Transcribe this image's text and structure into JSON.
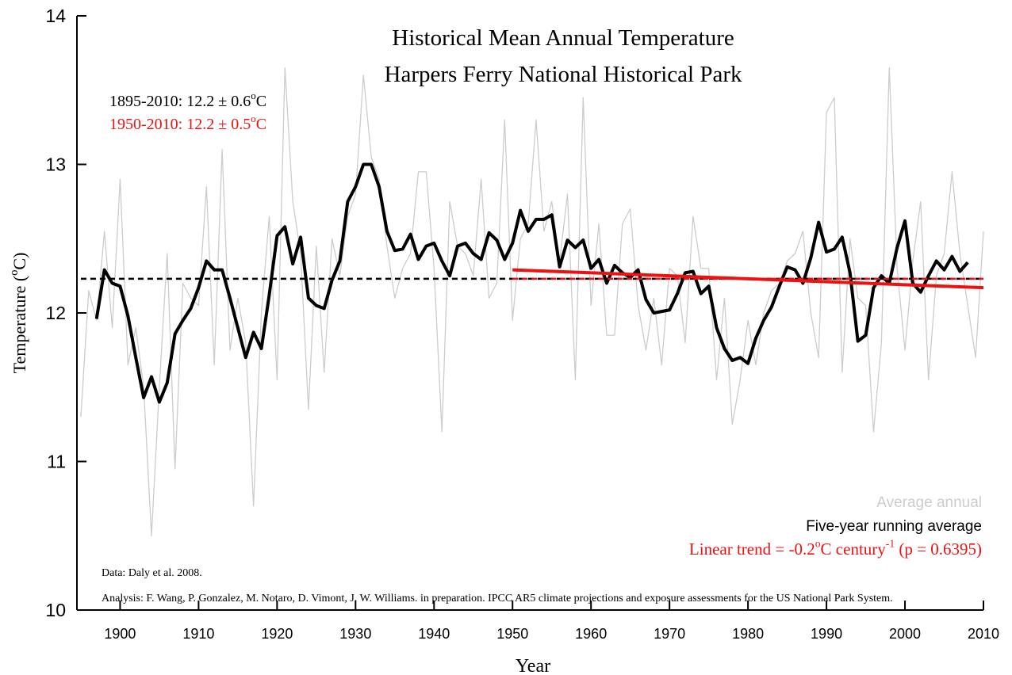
{
  "chart_data": {
    "type": "line",
    "title": [
      "Historical Mean Annual Temperature",
      "Harpers Ferry National Historical Park"
    ],
    "y_label": [
      {
        "text": "Temperature ("
      },
      {
        "text": "o",
        "sup": true
      },
      {
        "text": "C)"
      }
    ],
    "x_label": "Year",
    "xlim": [
      1894.5,
      2010
    ],
    "xticks": [
      1900,
      1910,
      1920,
      1930,
      1940,
      1950,
      1960,
      1970,
      1980,
      1990,
      2000,
      2010
    ],
    "ylim": [
      10,
      14
    ],
    "yticks": [
      10,
      11,
      12,
      13,
      14
    ],
    "x": [
      1895,
      1896,
      1897,
      1898,
      1899,
      1900,
      1901,
      1902,
      1903,
      1904,
      1905,
      1906,
      1907,
      1908,
      1909,
      1910,
      1911,
      1912,
      1913,
      1914,
      1915,
      1916,
      1917,
      1918,
      1919,
      1920,
      1921,
      1922,
      1923,
      1924,
      1925,
      1926,
      1927,
      1928,
      1929,
      1930,
      1931,
      1932,
      1933,
      1934,
      1935,
      1936,
      1937,
      1938,
      1939,
      1940,
      1941,
      1942,
      1943,
      1944,
      1945,
      1946,
      1947,
      1948,
      1949,
      1950,
      1951,
      1952,
      1953,
      1954,
      1955,
      1956,
      1957,
      1958,
      1959,
      1960,
      1961,
      1962,
      1963,
      1964,
      1965,
      1966,
      1967,
      1968,
      1969,
      1970,
      1971,
      1972,
      1973,
      1974,
      1975,
      1976,
      1977,
      1978,
      1979,
      1980,
      1981,
      1982,
      1983,
      1984,
      1985,
      1986,
      1987,
      1988,
      1989,
      1990,
      1991,
      1992,
      1993,
      1994,
      1995,
      1996,
      1997,
      1998,
      1999,
      2000,
      2001,
      2002,
      2003,
      2004,
      2005,
      2006,
      2007,
      2008,
      2009,
      2010
    ],
    "series": [
      {
        "name": "Average annual",
        "color": "#cccccc",
        "width": 1.3,
        "values": [
          11.3,
          12.15,
          11.95,
          12.55,
          11.9,
          12.9,
          11.65,
          11.9,
          11.5,
          10.5,
          11.5,
          12.4,
          10.95,
          12.2,
          12.1,
          12.05,
          12.85,
          11.65,
          13.1,
          11.75,
          12.1,
          11.8,
          10.7,
          12.0,
          12.65,
          11.55,
          13.65,
          12.75,
          12.4,
          11.35,
          12.45,
          11.6,
          12.5,
          12.25,
          12.65,
          12.8,
          13.6,
          13.05,
          12.9,
          12.45,
          12.1,
          12.3,
          12.4,
          12.95,
          12.95,
          12.3,
          11.2,
          12.75,
          12.45,
          12.4,
          12.25,
          12.9,
          12.1,
          12.2,
          13.3,
          11.95,
          12.5,
          12.6,
          13.3,
          12.55,
          12.75,
          12.35,
          12.8,
          11.55,
          13.45,
          12.05,
          12.6,
          11.85,
          11.85,
          12.6,
          12.7,
          12.05,
          11.75,
          12.1,
          11.65,
          12.3,
          12.25,
          11.8,
          12.65,
          12.3,
          12.3,
          11.55,
          12.1,
          11.25,
          11.55,
          11.95,
          11.65,
          12.0,
          12.15,
          12.2,
          12.35,
          12.4,
          12.55,
          12.0,
          11.7,
          13.35,
          13.45,
          11.6,
          12.5,
          12.1,
          12.05,
          11.2,
          11.8,
          13.65,
          12.3,
          11.75,
          12.35,
          12.75,
          11.55,
          12.25,
          12.4,
          12.95,
          12.4,
          12.05,
          11.7,
          12.55
        ]
      },
      {
        "name": "Five-year running average",
        "color": "#000000",
        "width": 4,
        "values": [
          null,
          null,
          11.96,
          12.29,
          12.2,
          12.18,
          11.98,
          11.7,
          11.43,
          11.57,
          11.4,
          11.53,
          11.86,
          11.95,
          12.03,
          12.17,
          12.35,
          12.29,
          12.29,
          12.1,
          11.9,
          11.7,
          11.87,
          11.76,
          12.12,
          12.52,
          12.58,
          12.33,
          12.51,
          12.1,
          12.05,
          12.03,
          12.22,
          12.35,
          12.75,
          12.85,
          13.0,
          13.0,
          12.85,
          12.55,
          12.42,
          12.43,
          12.53,
          12.36,
          12.45,
          12.47,
          12.35,
          12.25,
          12.45,
          12.47,
          12.4,
          12.36,
          12.54,
          12.49,
          12.36,
          12.47,
          12.69,
          12.55,
          12.63,
          12.63,
          12.66,
          12.31,
          12.49,
          12.44,
          12.49,
          12.3,
          12.36,
          12.2,
          12.32,
          12.27,
          12.24,
          12.29,
          12.09,
          12.0,
          12.01,
          12.02,
          12.13,
          12.27,
          12.28,
          12.13,
          12.18,
          11.9,
          11.76,
          11.68,
          11.7,
          11.66,
          11.83,
          11.95,
          12.04,
          12.18,
          12.31,
          12.29,
          12.2,
          12.37,
          12.61,
          12.41,
          12.43,
          12.51,
          12.27,
          11.81,
          11.85,
          12.17,
          12.25,
          12.2,
          12.44,
          12.62,
          12.2,
          12.14,
          12.25,
          12.35,
          12.29,
          12.38,
          12.28,
          12.34,
          null,
          null
        ]
      }
    ],
    "mean_lines": [
      {
        "x": [
          1895,
          2010
        ],
        "y": 12.23,
        "color": "#000000"
      },
      {
        "x": [
          1950,
          2010
        ],
        "y": 12.23,
        "color": "#ee1111"
      }
    ],
    "trend_line": {
      "x": [
        1950,
        2010
      ],
      "y": [
        12.29,
        12.17
      ],
      "color": "#ee1111"
    },
    "stats": [
      {
        "color": "#000000",
        "parts": [
          {
            "text": "1895-2010: 12.2 ±  0.6"
          },
          {
            "text": "o",
            "sup": true
          },
          {
            "text": "C"
          }
        ]
      },
      {
        "color": "#ee1111",
        "parts": [
          {
            "text": "1950-2010: 12.2 ±  0.5"
          },
          {
            "text": "o",
            "sup": true
          },
          {
            "text": "C"
          }
        ]
      }
    ],
    "trend_legend": [
      {
        "text": "Linear trend = -0.2"
      },
      {
        "text": "o",
        "sup": true
      },
      {
        "text": "C century"
      },
      {
        "text": "-1",
        "sup": true
      },
      {
        "text": " (p = 0.6395)"
      }
    ],
    "notes": [
      "Data: Daly et al. 2008.",
      "Analysis: F. Wang, P. Gonzalez, M. Notaro, D. Vimont, J. W. Williams. in preparation. IPCC AR5 climate projections and exposure assessments for the US National Park System."
    ]
  }
}
